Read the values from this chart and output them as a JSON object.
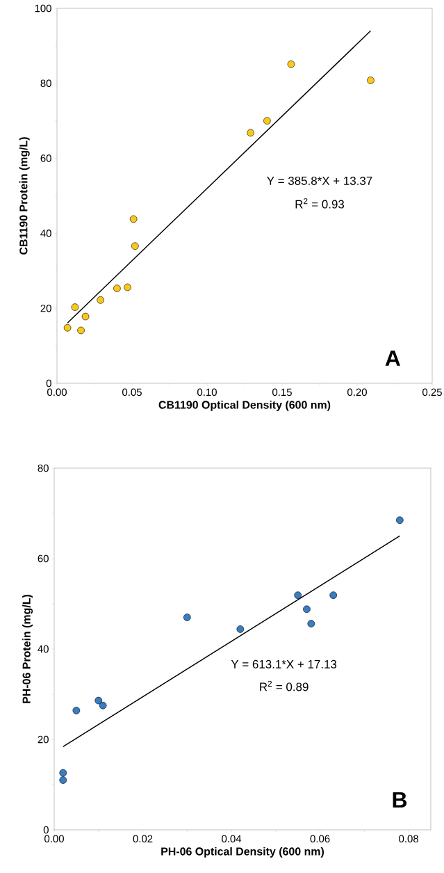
{
  "chart_data": [
    {
      "type": "scatter",
      "xlabel": "CB1190 Optical Density (600 nm)",
      "ylabel": "CB1190 Protein (mg/L)",
      "xlim": [
        0,
        0.25
      ],
      "ylim": [
        0,
        100
      ],
      "xticks": [
        {
          "value": 0,
          "label": "0.00"
        },
        {
          "value": 0.05,
          "label": "0.05"
        },
        {
          "value": 0.1,
          "label": "0.10"
        },
        {
          "value": 0.15,
          "label": "0.15"
        },
        {
          "value": 0.2,
          "label": "0.20"
        },
        {
          "value": 0.25,
          "label": "0.25"
        }
      ],
      "yticks": [
        0,
        20,
        40,
        60,
        80,
        100
      ],
      "series": [
        {
          "type": "scatter",
          "color": "#f9c81d",
          "marker": "circle",
          "x": [
            0.007,
            0.012,
            0.016,
            0.019,
            0.029,
            0.04,
            0.047,
            0.051,
            0.052,
            0.129,
            0.14,
            0.156,
            0.209
          ],
          "values": [
            14.8,
            20.3,
            14.1,
            17.8,
            22.2,
            25.3,
            25.6,
            43.8,
            36.6,
            66.8,
            70.0,
            85.1,
            80.8
          ]
        },
        {
          "type": "line",
          "color": "#000000",
          "line_style": "solid",
          "marker": "none",
          "x": [
            0.007,
            0.209
          ],
          "values": [
            16.1,
            94.0
          ]
        }
      ],
      "annotations": [
        "Y = 385.8*X + 13.37",
        "R$^{2}$ = 0.93",
        "A"
      ]
    },
    {
      "type": "scatter",
      "xlabel": "PH-06 Optical Density (600 nm)",
      "ylabel": "PH-06 Protein (mg/L)",
      "xlim": [
        0,
        0.085
      ],
      "ylim": [
        0,
        80
      ],
      "xticks": [
        {
          "value": 0,
          "label": "0.00"
        },
        {
          "value": 0.02,
          "label": "0.02"
        },
        {
          "value": 0.04,
          "label": "0.04"
        },
        {
          "value": 0.06,
          "label": "0.06"
        },
        {
          "value": 0.08,
          "label": "0.08"
        }
      ],
      "yticks": [
        0,
        20,
        40,
        60,
        80
      ],
      "series": [
        {
          "type": "scatter",
          "color": "#3a7dc0",
          "marker": "circle",
          "x": [
            0.002,
            0.002,
            0.005,
            0.01,
            0.011,
            0.03,
            0.042,
            0.055,
            0.057,
            0.058,
            0.063,
            0.078
          ],
          "values": [
            12.6,
            11.0,
            26.4,
            28.6,
            27.5,
            47.0,
            44.4,
            51.9,
            48.8,
            45.6,
            51.9,
            68.5
          ]
        },
        {
          "type": "line",
          "color": "#000000",
          "line_style": "solid",
          "marker": "none",
          "x": [
            0.002,
            0.078
          ],
          "values": [
            18.4,
            65.0
          ]
        }
      ],
      "annotations": [
        "Y = 613.1*X + 17.13",
        "R$^{2}$ = 0.89",
        "B"
      ]
    }
  ]
}
